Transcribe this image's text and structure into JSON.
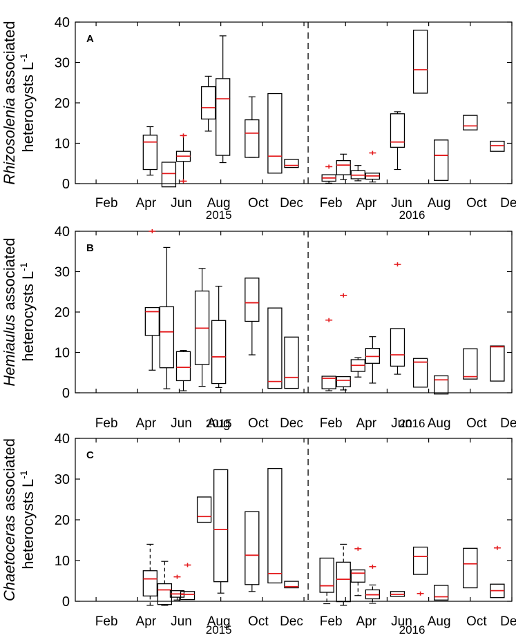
{
  "chart_data": [
    {
      "panel": "A",
      "type": "box",
      "taxon": "Rhizosolenia",
      "ylabel_rest": " associated",
      "ylabel_line2": "heterocysts L",
      "ylabel_sup": "-1",
      "ylim": [
        0,
        40
      ],
      "yticks": [
        0,
        10,
        20,
        30,
        40
      ],
      "xtick_labels": [
        "Feb",
        "Apr",
        "Jun",
        "Aug",
        "Oct",
        "Dec",
        "Feb",
        "Apr",
        "Jun",
        "Aug",
        "Oct",
        "Dec"
      ],
      "year_labels": [
        "2015",
        "2016"
      ],
      "boxes": [
        {
          "m": 4.6,
          "q1": 3.5,
          "med": 10.3,
          "q3": 12.0,
          "lo": 2.1,
          "hi": 14.1
        },
        {
          "m": 5.5,
          "q1": -0.8,
          "med": 2.5,
          "q3": 5.3,
          "lo": null,
          "hi": null
        },
        {
          "m": 6.2,
          "q1": 5.5,
          "med": 6.8,
          "q3": 8.0,
          "lo": 0.6,
          "hi": 11.9,
          "outliers": [
            11.9,
            0.6
          ]
        },
        {
          "m": 7.4,
          "q1": 16.0,
          "med": 18.8,
          "q3": 24.0,
          "lo": 13.0,
          "hi": 26.6
        },
        {
          "m": 8.1,
          "q1": 7.0,
          "med": 21.0,
          "q3": 26.0,
          "lo": 5.2,
          "hi": 36.6
        },
        {
          "m": 9.5,
          "q1": 6.5,
          "med": 12.5,
          "q3": 15.8,
          "lo": 6.5,
          "hi": 21.5
        },
        {
          "m": 10.6,
          "q1": 2.6,
          "med": 6.8,
          "q3": 22.3,
          "lo": null,
          "hi": null
        },
        {
          "m": 11.4,
          "q1": 4.0,
          "med": 4.5,
          "q3": 6.0,
          "lo": null,
          "hi": null
        },
        {
          "m": 13.2,
          "q1": 0.6,
          "med": 1.4,
          "q3": 2.2,
          "lo": 0.1,
          "hi": null,
          "outliers": [
            4.2
          ]
        },
        {
          "m": 13.9,
          "q1": 2.2,
          "med": 4.6,
          "q3": 5.7,
          "lo": 1.0,
          "hi": 7.3
        },
        {
          "m": 14.6,
          "q1": 1.2,
          "med": 2.1,
          "q3": 3.2,
          "lo": 0.7,
          "hi": 4.5
        },
        {
          "m": 15.3,
          "q1": 1.1,
          "med": 1.9,
          "q3": 2.6,
          "lo": 0.4,
          "hi": null,
          "outliers": [
            7.6
          ]
        },
        {
          "m": 16.5,
          "q1": 9.0,
          "med": 10.3,
          "q3": 17.3,
          "lo": 3.5,
          "hi": 17.8
        },
        {
          "m": 17.6,
          "q1": 22.4,
          "med": 28.2,
          "q3": 38.0,
          "lo": null,
          "hi": null
        },
        {
          "m": 18.6,
          "q1": 0.8,
          "med": 7.0,
          "q3": 10.8,
          "lo": null,
          "hi": null
        },
        {
          "m": 20.0,
          "q1": 13.3,
          "med": 14.3,
          "q3": 16.9,
          "lo": null,
          "hi": null
        },
        {
          "m": 21.3,
          "q1": 8.0,
          "med": 9.4,
          "q3": 10.5,
          "lo": null,
          "hi": null
        }
      ]
    },
    {
      "panel": "B",
      "type": "box",
      "taxon": "Hemiaulus",
      "ylabel_rest": " associated",
      "ylabel_line2": "heterocysts L",
      "ylabel_sup": "-1",
      "ylim": [
        0,
        40
      ],
      "yticks": [
        0,
        10,
        20,
        30,
        40
      ],
      "xtick_labels": [
        "Feb",
        "Apr",
        "Jun",
        "Aug",
        "Oct",
        "Dec",
        "Feb",
        "Apr",
        "Jun",
        "Aug",
        "Oct",
        "Dec"
      ],
      "year_labels": [
        "2015",
        "2016"
      ],
      "boxes": [
        {
          "m": 4.7,
          "q1": 14.2,
          "med": 20.1,
          "q3": 21.1,
          "lo": 5.6,
          "hi": null,
          "outliers": [
            40.0
          ]
        },
        {
          "m": 5.4,
          "q1": 6.2,
          "med": 15.1,
          "q3": 21.3,
          "lo": 1.0,
          "hi": 36.0
        },
        {
          "m": 6.2,
          "q1": 3.0,
          "med": 6.3,
          "q3": 10.2,
          "lo": 0.5,
          "hi": 10.5
        },
        {
          "m": 7.1,
          "q1": 7.0,
          "med": 16.0,
          "q3": 25.2,
          "lo": 1.6,
          "hi": 30.8
        },
        {
          "m": 7.9,
          "q1": 2.3,
          "med": 8.9,
          "q3": 17.9,
          "lo": 1.3,
          "hi": 26.4
        },
        {
          "m": 9.5,
          "q1": 17.7,
          "med": 22.3,
          "q3": 28.4,
          "lo": 9.4,
          "hi": null
        },
        {
          "m": 10.6,
          "q1": 1.1,
          "med": 2.8,
          "q3": 21.0,
          "lo": null,
          "hi": null
        },
        {
          "m": 11.4,
          "q1": 1.1,
          "med": 3.8,
          "q3": 13.8,
          "lo": null,
          "hi": null
        },
        {
          "m": 13.2,
          "q1": 1.0,
          "med": 3.6,
          "q3": 4.1,
          "lo": 0.5,
          "hi": null,
          "outliers": [
            18.0
          ]
        },
        {
          "m": 13.9,
          "q1": 1.5,
          "med": 3.1,
          "q3": 4.0,
          "lo": 0.7,
          "hi": null,
          "outliers": [
            24.1
          ]
        },
        {
          "m": 14.6,
          "q1": 5.3,
          "med": 6.8,
          "q3": 8.2,
          "lo": 3.9,
          "hi": 8.7
        },
        {
          "m": 15.3,
          "q1": 7.3,
          "med": 9.0,
          "q3": 11.0,
          "lo": 2.4,
          "hi": 13.9
        },
        {
          "m": 16.5,
          "q1": 6.6,
          "med": 9.4,
          "q3": 15.9,
          "lo": 4.6,
          "hi": null,
          "outliers": [
            31.8
          ]
        },
        {
          "m": 17.6,
          "q1": 1.4,
          "med": 7.6,
          "q3": 8.5,
          "lo": null,
          "hi": null
        },
        {
          "m": 18.6,
          "q1": -0.3,
          "med": 3.2,
          "q3": 4.2,
          "lo": null,
          "hi": null
        },
        {
          "m": 20.0,
          "q1": 3.4,
          "med": 4.0,
          "q3": 10.9,
          "lo": null,
          "hi": null
        },
        {
          "m": 21.3,
          "q1": 2.9,
          "med": 11.4,
          "q3": 11.6,
          "lo": null,
          "hi": null
        }
      ]
    },
    {
      "panel": "C",
      "type": "box",
      "taxon": "Chaetoceras",
      "ylabel_rest": " associated",
      "ylabel_line2": "heterocysts L",
      "ylabel_sup": "-1",
      "ylim": [
        0,
        40
      ],
      "yticks": [
        0,
        10,
        20,
        30,
        40
      ],
      "xtick_labels": [
        "Feb",
        "Apr",
        "Jun",
        "Aug",
        "Oct",
        "Dec",
        "Feb",
        "Apr",
        "Jun",
        "Aug",
        "Oct",
        "Dec"
      ],
      "year_labels": [
        "2015",
        "2016"
      ],
      "boxes": [
        {
          "m": 4.6,
          "q1": 1.3,
          "med": 5.5,
          "q3": 7.5,
          "lo": -1.0,
          "hi": 14.0,
          "dashed": true
        },
        {
          "m": 5.3,
          "q1": -0.8,
          "med": 2.8,
          "q3": 4.3,
          "lo": -1.0,
          "hi": 9.8,
          "dashed": true
        },
        {
          "m": 5.9,
          "q1": 1.0,
          "med": 1.8,
          "q3": 2.6,
          "lo": 0.3,
          "hi": null,
          "outliers": [
            6.0
          ]
        },
        {
          "m": 6.4,
          "q1": 0.4,
          "med": 1.7,
          "q3": 2.4,
          "lo": null,
          "hi": null,
          "outliers": [
            8.9
          ]
        },
        {
          "m": 7.2,
          "q1": 19.4,
          "med": 20.8,
          "q3": 25.6,
          "lo": null,
          "hi": null
        },
        {
          "m": 8.0,
          "q1": 4.8,
          "med": 17.6,
          "q3": 32.3,
          "lo": 2.0,
          "hi": null
        },
        {
          "m": 9.5,
          "q1": 4.1,
          "med": 11.3,
          "q3": 22.0,
          "lo": 2.4,
          "hi": null
        },
        {
          "m": 10.6,
          "q1": 4.5,
          "med": 6.8,
          "q3": 32.6,
          "lo": null,
          "hi": null
        },
        {
          "m": 11.4,
          "q1": 3.3,
          "med": 3.6,
          "q3": 4.9,
          "lo": null,
          "hi": null
        },
        {
          "m": 13.1,
          "q1": 2.2,
          "med": 3.8,
          "q3": 10.6,
          "lo": -0.6,
          "hi": null,
          "dashed": true
        },
        {
          "m": 13.9,
          "q1": -0.1,
          "med": 5.4,
          "q3": 9.6,
          "lo": -1.0,
          "hi": 14.0,
          "dashed": true
        },
        {
          "m": 14.6,
          "q1": 4.7,
          "med": 6.9,
          "q3": 7.7,
          "lo": 1.4,
          "hi": null,
          "dashed": true,
          "outliers": [
            12.9
          ]
        },
        {
          "m": 15.3,
          "q1": 0.6,
          "med": 1.6,
          "q3": 2.8,
          "lo": -0.5,
          "hi": 4.0,
          "dashed": true,
          "outliers": [
            8.5
          ]
        },
        {
          "m": 16.5,
          "q1": 1.2,
          "med": 1.7,
          "q3": 2.4,
          "lo": null,
          "hi": null
        },
        {
          "m": 17.6,
          "q1": 6.6,
          "med": 11.0,
          "q3": 13.3,
          "lo": null,
          "hi": null,
          "outliers": [
            1.9
          ]
        },
        {
          "m": 18.6,
          "q1": 0.3,
          "med": 1.1,
          "q3": 3.9,
          "lo": null,
          "hi": null
        },
        {
          "m": 20.0,
          "q1": 3.3,
          "med": 9.2,
          "q3": 13.0,
          "lo": null,
          "hi": null
        },
        {
          "m": 21.3,
          "q1": 0.9,
          "med": 2.6,
          "q3": 4.2,
          "lo": null,
          "hi": null,
          "outliers": [
            13.1
          ]
        }
      ]
    }
  ],
  "colors": {
    "box": "#000000",
    "median": "#e41a1c",
    "outlier": "#e41a1c",
    "divider": "#000000"
  }
}
